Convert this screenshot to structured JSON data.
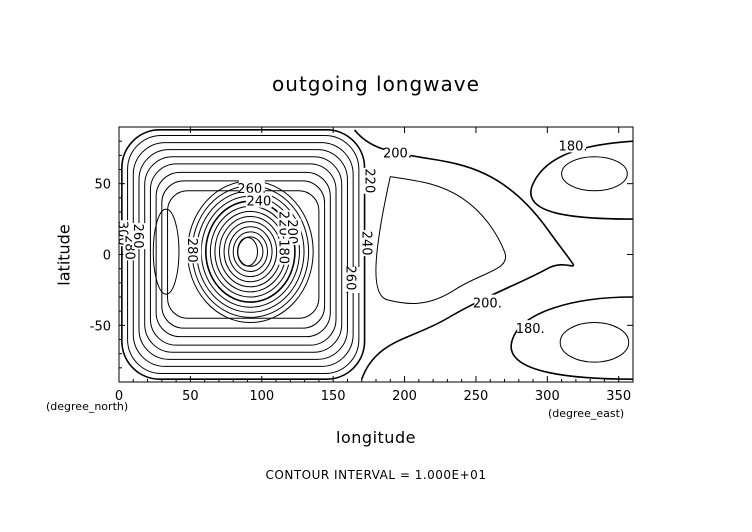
{
  "chart_data": {
    "type": "contour",
    "title": "outgoing longwave",
    "xlabel": "longitude",
    "ylabel": "latitude",
    "x_unit": "(degree_east)",
    "y_unit": "(degree_north)",
    "footer": "CONTOUR INTERVAL = 1.000E+01",
    "xlim": [
      0,
      360
    ],
    "ylim": [
      -90,
      90
    ],
    "xticks": [
      0,
      50,
      100,
      150,
      200,
      250,
      300,
      350
    ],
    "yticks": [
      -50,
      0,
      50
    ],
    "contour_interval": 10,
    "contour_labels": [
      {
        "text": "200.",
        "lon": 195,
        "lat": 72
      },
      {
        "text": "180.",
        "lon": 318,
        "lat": 77
      },
      {
        "text": "220",
        "lon": 176,
        "lat": 52,
        "rotation": 90
      },
      {
        "text": "240",
        "lon": 174,
        "lat": 8,
        "rotation": 90
      },
      {
        "text": "260.",
        "lon": 163,
        "lat": -18,
        "rotation": 90
      },
      {
        "text": "260.",
        "lon": 93,
        "lat": 47
      },
      {
        "text": "240",
        "lon": 98,
        "lat": 38
      },
      {
        "text": "280",
        "lon": 52,
        "lat": 3,
        "rotation": 90
      },
      {
        "text": "300",
        "lon": 3,
        "lat": 15,
        "rotation": 90
      },
      {
        "text": "280",
        "lon": 8,
        "lat": 5,
        "rotation": 90
      },
      {
        "text": "260",
        "lon": 14,
        "lat": 13,
        "rotation": 90
      },
      {
        "text": "220",
        "lon": 116,
        "lat": 22,
        "rotation": 90
      },
      {
        "text": "200",
        "lon": 122,
        "lat": 16,
        "rotation": 90
      },
      {
        "text": "180",
        "lon": 116,
        "lat": 2,
        "rotation": 90
      },
      {
        "text": "200.",
        "lon": 258,
        "lat": -34
      },
      {
        "text": "180.",
        "lon": 288,
        "lat": -52
      }
    ]
  }
}
